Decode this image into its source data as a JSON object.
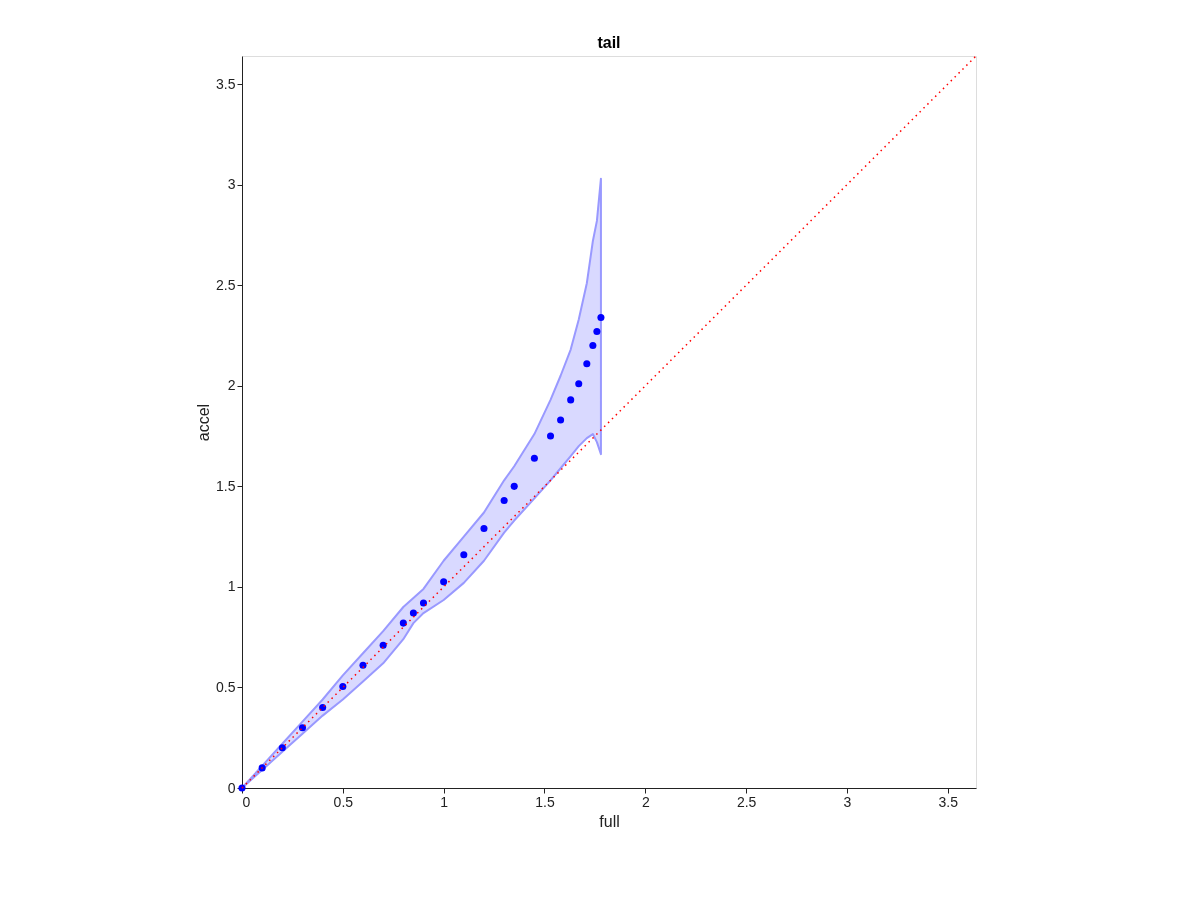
{
  "chart_data": {
    "type": "scatter",
    "title": "tail",
    "xlabel": "full",
    "ylabel": "accel",
    "xlim": [
      0,
      3.64
    ],
    "ylim": [
      0,
      3.64
    ],
    "xticks": [
      0,
      0.5,
      1,
      1.5,
      2,
      2.5,
      3,
      3.5
    ],
    "yticks": [
      0,
      0.5,
      1,
      1.5,
      2,
      2.5,
      3,
      3.5
    ],
    "grid": false,
    "marker": "circle",
    "series": [
      {
        "color": "#0000ff",
        "x": [
          0,
          0.1,
          0.2,
          0.3,
          0.4,
          0.5,
          0.6,
          0.7,
          0.8,
          0.85,
          0.9,
          1.0,
          1.1,
          1.2,
          1.3,
          1.35,
          1.45,
          1.53,
          1.58,
          1.63,
          1.67,
          1.71,
          1.74,
          1.76,
          1.78
        ],
        "values": [
          0,
          0.1,
          0.2,
          0.3,
          0.4,
          0.505,
          0.61,
          0.71,
          0.82,
          0.87,
          0.92,
          1.025,
          1.16,
          1.29,
          1.43,
          1.5,
          1.64,
          1.75,
          1.83,
          1.93,
          2.01,
          2.11,
          2.2,
          2.27,
          2.34
        ],
        "upper": [
          0,
          0.11,
          0.22,
          0.33,
          0.44,
          0.56,
          0.67,
          0.78,
          0.9,
          0.945,
          0.99,
          1.13,
          1.25,
          1.37,
          1.53,
          1.6,
          1.76,
          1.93,
          2.05,
          2.18,
          2.33,
          2.51,
          2.72,
          2.82,
          3.03
        ],
        "lower": [
          0,
          0.09,
          0.18,
          0.27,
          0.36,
          0.44,
          0.53,
          0.62,
          0.74,
          0.82,
          0.87,
          0.935,
          1.02,
          1.13,
          1.27,
          1.33,
          1.44,
          1.53,
          1.59,
          1.65,
          1.7,
          1.74,
          1.76,
          1.72,
          1.66
        ]
      },
      {
        "type": "line",
        "color": "#ff0000",
        "line_style": "dotted",
        "marker": "none",
        "x": [
          0,
          3.64
        ],
        "values": [
          0,
          3.64
        ]
      }
    ]
  }
}
